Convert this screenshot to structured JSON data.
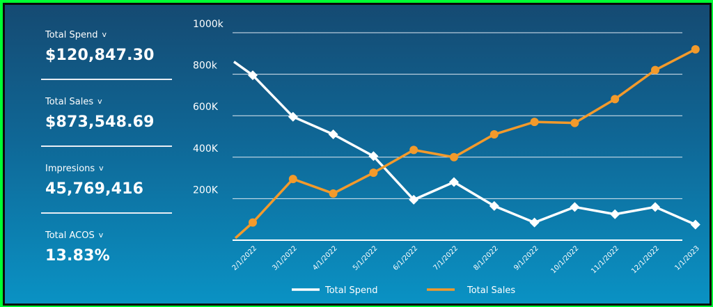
{
  "kpis": [
    {
      "label": "Total Spend",
      "value": "$120,847.30"
    },
    {
      "label": "Total Sales",
      "value": "$873,548.69"
    },
    {
      "label": "Impresions",
      "value": "45,769,416"
    },
    {
      "label": "Total ACOS",
      "value": "13.83%"
    }
  ],
  "chevron": "v",
  "colors": {
    "spend": "#ffffff",
    "sales": "#f39a2b",
    "grid": "#dfe9f2"
  },
  "chart_data": {
    "type": "line",
    "x": [
      "2/1/2022",
      "3/1/2022",
      "4/1/2022",
      "5/1/2022",
      "6/1/2022",
      "7/1/2022",
      "8/1/2022",
      "9/1/2022",
      "10/1/2022",
      "11/1/2022",
      "12/1/2022",
      "1/1/2023"
    ],
    "y_tick_values": [
      200000,
      400000,
      600000,
      800000,
      1000000
    ],
    "y_tick_labels": [
      "200K",
      "400K",
      "600K",
      "800k",
      "1000k"
    ],
    "ylim": [
      0,
      1000000
    ],
    "grid": true,
    "legend_position": "bottom",
    "series": [
      {
        "name": "Total Spend",
        "values": [
          795000,
          595000,
          510000,
          405000,
          195000,
          280000,
          165000,
          85000,
          160000,
          125000,
          160000,
          75000
        ]
      },
      {
        "name": "Total Sales",
        "values": [
          85000,
          295000,
          225000,
          325000,
          435000,
          400000,
          510000,
          570000,
          565000,
          680000,
          820000,
          920000
        ]
      }
    ]
  }
}
